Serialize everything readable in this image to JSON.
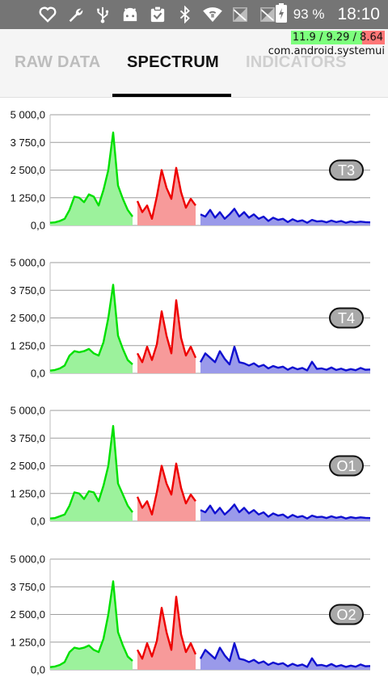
{
  "status_bar": {
    "icons": [
      "heart-outline-icon",
      "wrench-icon",
      "usb-icon",
      "android-icon",
      "clipboard-check-icon",
      "bluetooth-icon",
      "wifi-icon",
      "signal-off-icon",
      "signal-off-icon",
      "battery-charging-icon"
    ],
    "battery_percent": "93 %",
    "time": "18:10"
  },
  "overlay": {
    "load": "11.9 / 9.29 / 8.64",
    "process": "com.android.systemui"
  },
  "tabs": [
    {
      "label": "RAW DATA",
      "active": false
    },
    {
      "label": "SPECTRUM",
      "active": true
    },
    {
      "label": "INDICATORS",
      "active": false
    }
  ],
  "colors": {
    "band1": "#00e000",
    "band1_fill": "#9cf29c",
    "band2": "#ee0000",
    "band2_fill": "#f79a9a",
    "band3": "#1010d0",
    "band3_fill": "#9a9aea",
    "grid": "#9e9e9e"
  },
  "chart_data": [
    {
      "type": "area",
      "channel": "T3",
      "yticks": [
        "0,0",
        "1 250,0",
        "2 500,0",
        "3 750,0",
        "5 000,0"
      ],
      "ylim": [
        0,
        5000
      ],
      "x": [
        0,
        6,
        12,
        18,
        24,
        30,
        36,
        42,
        48,
        54,
        60,
        66,
        72,
        78,
        84,
        90,
        96,
        102,
        108,
        114,
        120,
        126,
        132,
        138,
        144,
        150,
        156,
        162,
        168,
        174,
        180,
        186,
        192,
        198,
        204,
        210,
        216,
        222,
        228,
        234,
        240,
        246,
        252,
        258,
        264,
        270,
        276,
        282,
        288,
        294,
        300,
        306,
        312,
        318,
        324,
        330,
        336,
        342,
        348,
        354,
        360,
        366,
        372,
        378,
        384,
        390,
        396
      ],
      "values": [
        120,
        140,
        200,
        300,
        700,
        1300,
        1250,
        1050,
        1400,
        1300,
        900,
        1600,
        2500,
        4200,
        1800,
        1200,
        700,
        400,
        1100,
        600,
        900,
        300,
        1300,
        2500,
        1700,
        1200,
        2600,
        1500,
        800,
        1200,
        900,
        500,
        400,
        700,
        350,
        600,
        300,
        500,
        750,
        400,
        600,
        350,
        500,
        300,
        400,
        200,
        350,
        250,
        300,
        150,
        280,
        180,
        230,
        120,
        250,
        180,
        200,
        140,
        220,
        150,
        200,
        120,
        180,
        140,
        170,
        150,
        140
      ],
      "bands": [
        [
          0,
          105
        ],
        [
          105,
          184
        ],
        [
          184,
          396
        ]
      ]
    },
    {
      "type": "area",
      "channel": "T4",
      "yticks": [
        "0,0",
        "1 250,0",
        "2 500,0",
        "3 750,0",
        "5 000,0"
      ],
      "ylim": [
        0,
        5000
      ],
      "x": [
        0,
        6,
        12,
        18,
        24,
        30,
        36,
        42,
        48,
        54,
        60,
        66,
        72,
        78,
        84,
        90,
        96,
        102,
        108,
        114,
        120,
        126,
        132,
        138,
        144,
        150,
        156,
        162,
        168,
        174,
        180,
        186,
        192,
        198,
        204,
        210,
        216,
        222,
        228,
        234,
        240,
        246,
        252,
        258,
        264,
        270,
        276,
        282,
        288,
        294,
        300,
        306,
        312,
        318,
        324,
        330,
        336,
        342,
        348,
        354,
        360,
        366,
        372,
        378,
        384,
        390,
        396
      ],
      "values": [
        120,
        150,
        220,
        350,
        800,
        1000,
        950,
        1000,
        1100,
        900,
        800,
        1400,
        2500,
        4000,
        1700,
        1100,
        600,
        400,
        900,
        500,
        1200,
        600,
        1300,
        2800,
        1700,
        900,
        3300,
        1600,
        800,
        1200,
        700,
        500,
        900,
        700,
        500,
        1000,
        650,
        400,
        1200,
        500,
        450,
        350,
        450,
        300,
        380,
        220,
        330,
        250,
        300,
        160,
        270,
        180,
        240,
        130,
        520,
        200,
        220,
        160,
        260,
        150,
        210,
        130,
        190,
        140,
        240,
        160,
        170
      ],
      "bands": [
        [
          0,
          105
        ],
        [
          105,
          184
        ],
        [
          184,
          396
        ]
      ]
    },
    {
      "type": "area",
      "channel": "O1",
      "yticks": [
        "0,0",
        "1 250,0",
        "2 500,0",
        "3 750,0",
        "5 000,0"
      ],
      "ylim": [
        0,
        5000
      ],
      "x": [
        0,
        6,
        12,
        18,
        24,
        30,
        36,
        42,
        48,
        54,
        60,
        66,
        72,
        78,
        84,
        90,
        96,
        102,
        108,
        114,
        120,
        126,
        132,
        138,
        144,
        150,
        156,
        162,
        168,
        174,
        180,
        186,
        192,
        198,
        204,
        210,
        216,
        222,
        228,
        234,
        240,
        246,
        252,
        258,
        264,
        270,
        276,
        282,
        288,
        294,
        300,
        306,
        312,
        318,
        324,
        330,
        336,
        342,
        348,
        354,
        360,
        366,
        372,
        378,
        384,
        390,
        396
      ],
      "values": [
        120,
        140,
        220,
        300,
        700,
        1300,
        1250,
        1000,
        1350,
        1300,
        900,
        1600,
        2500,
        4300,
        1700,
        1200,
        700,
        400,
        1100,
        600,
        900,
        300,
        1300,
        2500,
        1700,
        1200,
        2600,
        1500,
        800,
        1200,
        900,
        500,
        400,
        700,
        350,
        600,
        300,
        500,
        750,
        400,
        600,
        350,
        500,
        300,
        400,
        200,
        350,
        250,
        300,
        150,
        280,
        180,
        230,
        120,
        250,
        180,
        200,
        140,
        220,
        150,
        200,
        120,
        180,
        140,
        170,
        150,
        140
      ],
      "bands": [
        [
          0,
          105
        ],
        [
          105,
          184
        ],
        [
          184,
          396
        ]
      ]
    },
    {
      "type": "area",
      "channel": "O2",
      "yticks": [
        "0,0",
        "1 250,0",
        "2 500,0",
        "3 750,0",
        "5 000,0"
      ],
      "ylim": [
        0,
        5000
      ],
      "x": [
        0,
        6,
        12,
        18,
        24,
        30,
        36,
        42,
        48,
        54,
        60,
        66,
        72,
        78,
        84,
        90,
        96,
        102,
        108,
        114,
        120,
        126,
        132,
        138,
        144,
        150,
        156,
        162,
        168,
        174,
        180,
        186,
        192,
        198,
        204,
        210,
        216,
        222,
        228,
        234,
        240,
        246,
        252,
        258,
        264,
        270,
        276,
        282,
        288,
        294,
        300,
        306,
        312,
        318,
        324,
        330,
        336,
        342,
        348,
        354,
        360,
        366,
        372,
        378,
        384,
        390,
        396
      ],
      "values": [
        120,
        150,
        220,
        350,
        800,
        1000,
        950,
        1000,
        1100,
        900,
        800,
        1400,
        2500,
        4000,
        1700,
        1100,
        600,
        400,
        900,
        500,
        1200,
        600,
        1300,
        2800,
        1700,
        900,
        3300,
        1600,
        800,
        1200,
        700,
        500,
        900,
        700,
        500,
        1000,
        650,
        400,
        1200,
        500,
        450,
        350,
        450,
        300,
        380,
        220,
        330,
        250,
        300,
        160,
        270,
        180,
        240,
        130,
        520,
        200,
        220,
        160,
        260,
        150,
        210,
        130,
        190,
        140,
        240,
        160,
        170
      ],
      "bands": [
        [
          0,
          105
        ],
        [
          105,
          184
        ],
        [
          184,
          396
        ]
      ]
    }
  ]
}
